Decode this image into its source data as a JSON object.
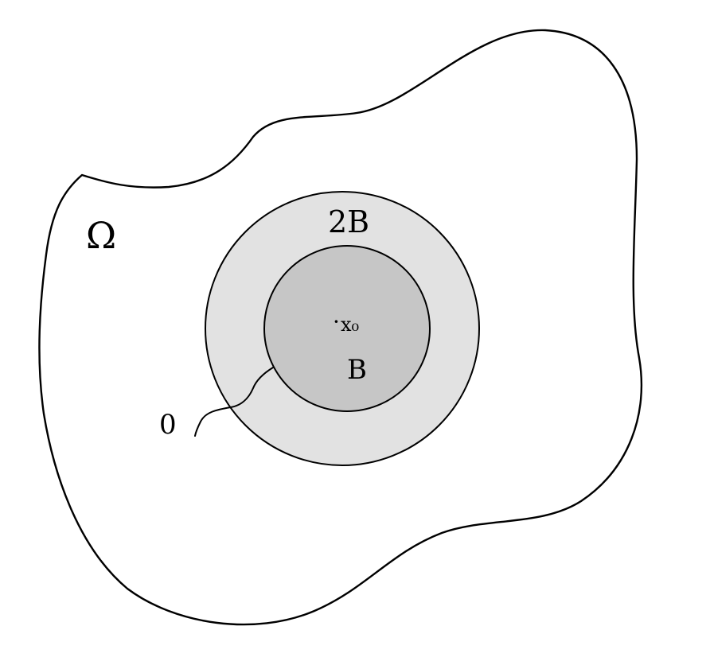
{
  "labels": {
    "domain": "Ω",
    "outer_ball": "2B",
    "inner_ball": "B",
    "center_dot": "·",
    "center": "x₀",
    "curve_end": "0"
  },
  "colors": {
    "stroke": "#000000",
    "outer_ball_fill": "#e2e2e2",
    "inner_ball_fill": "#c6c6c6",
    "background": "#ffffff"
  }
}
